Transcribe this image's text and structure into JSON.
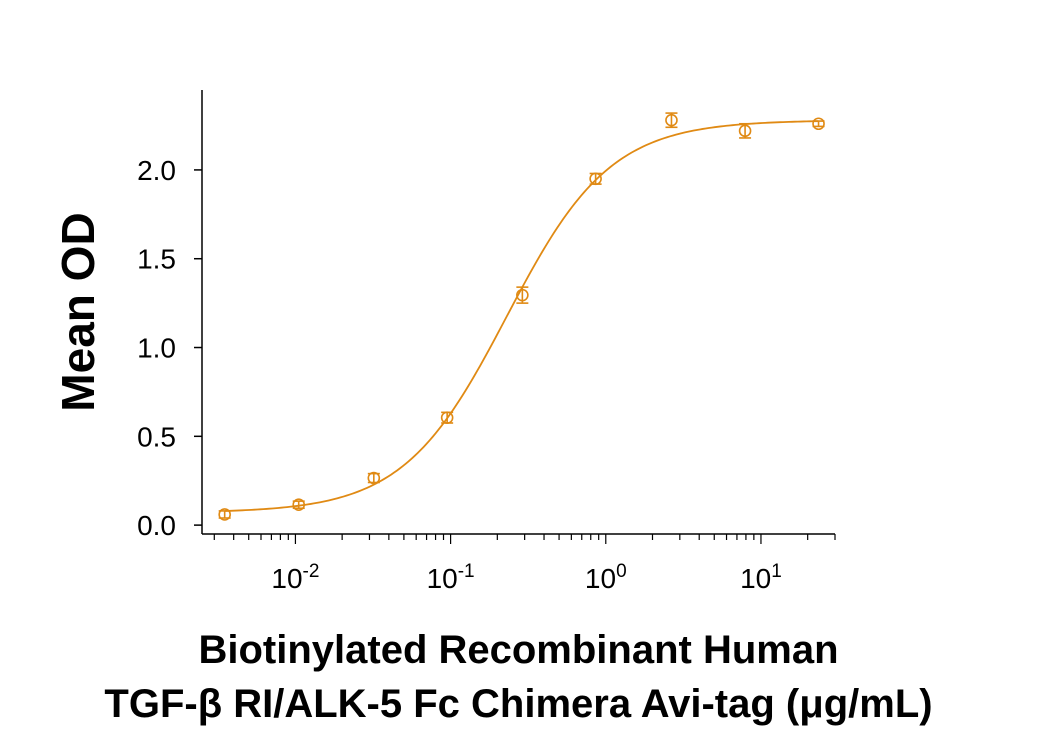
{
  "chart_data": {
    "type": "scatter",
    "title": "",
    "xscale": "log",
    "xlim": [
      0.0025,
      30
    ],
    "ylim": [
      -0.05,
      2.45
    ],
    "xticks": [
      {
        "value": 0.01,
        "base": "10",
        "exp": "-2"
      },
      {
        "value": 0.1,
        "base": "10",
        "exp": "-1"
      },
      {
        "value": 1,
        "base": "10",
        "exp": "0"
      },
      {
        "value": 10,
        "base": "10",
        "exp": "1"
      }
    ],
    "yticks": [
      {
        "value": 0.0,
        "label": "0.0"
      },
      {
        "value": 0.5,
        "label": "0.5"
      },
      {
        "value": 1.0,
        "label": "1.0"
      },
      {
        "value": 1.5,
        "label": "1.5"
      },
      {
        "value": 2.0,
        "label": "2.0"
      }
    ],
    "ylabel": "Mean OD",
    "xlabel_line1": "Biotinylated Recombinant Human",
    "xlabel_line2": "TGF-β RI/ALK-5 Fc Chimera Avi-tag (μg/mL)",
    "color": "#E08A14",
    "points": [
      {
        "x": 0.0035,
        "y": 0.06,
        "err": 0.02
      },
      {
        "x": 0.0105,
        "y": 0.115,
        "err": 0.02
      },
      {
        "x": 0.032,
        "y": 0.265,
        "err": 0.025
      },
      {
        "x": 0.095,
        "y": 0.605,
        "err": 0.03
      },
      {
        "x": 0.29,
        "y": 1.295,
        "err": 0.045
      },
      {
        "x": 0.86,
        "y": 1.95,
        "err": 0.03
      },
      {
        "x": 2.65,
        "y": 2.28,
        "err": 0.04
      },
      {
        "x": 7.9,
        "y": 2.22,
        "err": 0.04
      },
      {
        "x": 23.5,
        "y": 2.26,
        "err": 0.015
      }
    ],
    "fit": {
      "model": "4PL",
      "bottom": 0.07,
      "top": 2.28,
      "ec50": 0.23,
      "hill": 1.3
    }
  }
}
